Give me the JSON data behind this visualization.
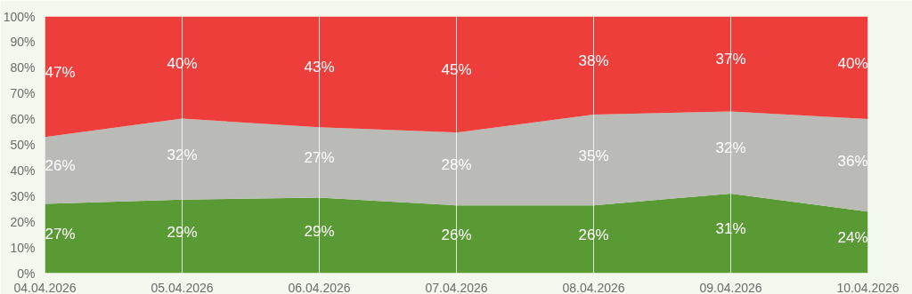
{
  "chart_data": {
    "type": "area",
    "stacked": true,
    "categories": [
      "04.04.2026",
      "05.04.2026",
      "06.04.2026",
      "07.04.2026",
      "08.04.2026",
      "09.04.2026",
      "10.04.2026"
    ],
    "series": [
      {
        "color": "#5a9a35",
        "values": [
          27,
          28.6,
          29.4,
          26.4,
          26.4,
          31,
          24
        ],
        "value_labels": [
          "27%",
          "29%",
          "29%",
          "26%",
          "26%",
          "31%",
          "24%"
        ]
      },
      {
        "color": "#babbb6",
        "values": [
          26,
          31.6,
          27.4,
          28.4,
          35.4,
          32,
          36
        ],
        "value_labels": [
          "26%",
          "32%",
          "27%",
          "28%",
          "35%",
          "32%",
          "36%"
        ]
      },
      {
        "color": "#ee3e3b",
        "values": [
          47,
          39.8,
          43.2,
          45.2,
          38.2,
          37,
          40
        ],
        "value_labels": [
          "47%",
          "40%",
          "43%",
          "45%",
          "38%",
          "37%",
          "40%"
        ]
      }
    ],
    "ylim": [
      0,
      100
    ],
    "yticks": [
      {
        "value": 0,
        "label": "0%"
      },
      {
        "value": 10,
        "label": "10%"
      },
      {
        "value": 20,
        "label": "20%"
      },
      {
        "value": 30,
        "label": "30%"
      },
      {
        "value": 40,
        "label": "40%"
      },
      {
        "value": 50,
        "label": "50%"
      },
      {
        "value": 60,
        "label": "60%"
      },
      {
        "value": 70,
        "label": "70%"
      },
      {
        "value": 80,
        "label": "80%"
      },
      {
        "value": 90,
        "label": "90%"
      },
      {
        "value": 100,
        "label": "100%"
      }
    ],
    "grid": "x"
  }
}
